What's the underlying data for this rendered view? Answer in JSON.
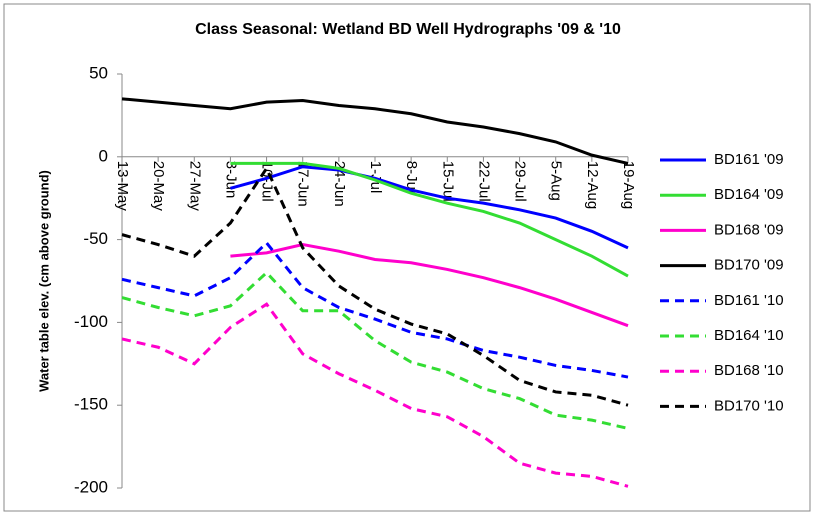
{
  "chart_data": {
    "type": "line",
    "title": "Class Seasonal: Wetland BD Well Hydrographs '09 & '10",
    "y_label": "Water table elev. (cm above ground)",
    "categories": [
      "13-May",
      "20-May",
      "27-May",
      "3-Jun",
      "10-Jul",
      "17-Jun",
      "24-Jun",
      "1-Jul",
      "8-Jul",
      "15-Jul",
      "22-Jul",
      "29-Jul",
      "5-Aug",
      "12-Aug",
      "19-Aug"
    ],
    "ylim": [
      -200,
      50
    ],
    "yticks": [
      -200,
      -150,
      -100,
      -50,
      0,
      50
    ],
    "legend": "right",
    "series": [
      {
        "name": "BD161 '09",
        "color": "#0000ff",
        "dash": false,
        "values": [
          null,
          null,
          null,
          -19,
          -13,
          -6,
          -8,
          -13,
          -20,
          -25,
          -28,
          -32,
          -37,
          -45,
          -55
        ]
      },
      {
        "name": "BD164 '09",
        "color": "#33dd33",
        "dash": false,
        "values": [
          null,
          null,
          null,
          -4,
          -4,
          -4,
          -7,
          -14,
          -22,
          -28,
          -33,
          -40,
          -50,
          -60,
          -72
        ]
      },
      {
        "name": "BD168 '09",
        "color": "#ff00cc",
        "dash": false,
        "values": [
          null,
          null,
          null,
          -60,
          -58,
          -53,
          -57,
          -62,
          -64,
          -68,
          -73,
          -79,
          -86,
          -94,
          -102
        ]
      },
      {
        "name": "BD170 '09",
        "color": "#000000",
        "dash": false,
        "values": [
          35,
          33,
          31,
          29,
          33,
          34,
          31,
          29,
          26,
          21,
          18,
          14,
          9,
          1,
          -4
        ]
      },
      {
        "name": "BD161 '10",
        "color": "#0000ff",
        "dash": true,
        "values": [
          -74,
          -79,
          -84,
          -73,
          -52,
          -79,
          -91,
          -98,
          -106,
          -110,
          -117,
          -121,
          -126,
          -129,
          -133
        ]
      },
      {
        "name": "BD164 '10",
        "color": "#33dd33",
        "dash": true,
        "values": [
          -85,
          -91,
          -96,
          -90,
          -70,
          -93,
          -93,
          -111,
          -124,
          -130,
          -140,
          -146,
          -156,
          -159,
          -164
        ]
      },
      {
        "name": "BD168 '10",
        "color": "#ff00cc",
        "dash": true,
        "values": [
          -110,
          -115,
          -125,
          -103,
          -89,
          -119,
          -131,
          -141,
          -152,
          -157,
          -169,
          -185,
          -191,
          -193,
          -199
        ]
      },
      {
        "name": "BD170 '10",
        "color": "#000000",
        "dash": true,
        "values": [
          -47,
          -53,
          -60,
          -40,
          -7,
          -55,
          -78,
          -92,
          -101,
          -107,
          -120,
          -135,
          -142,
          -144,
          -150
        ]
      }
    ]
  }
}
